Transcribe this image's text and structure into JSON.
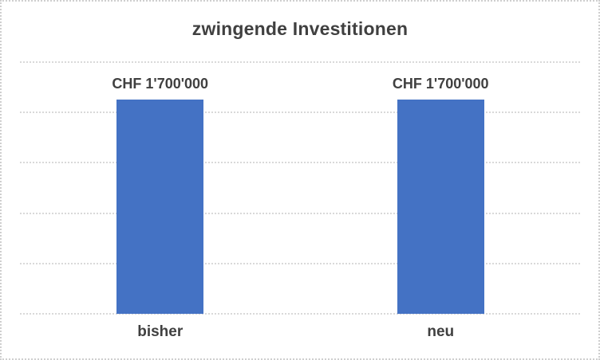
{
  "chart_data": {
    "type": "bar",
    "title": "zwingende Investitionen",
    "categories": [
      "bisher",
      "neu"
    ],
    "values": [
      1700000,
      1700000
    ],
    "data_labels": [
      "CHF 1'700'000",
      "CHF 1'700'000"
    ],
    "xlabel": "",
    "ylabel": "",
    "ylim": [
      0,
      2000000
    ],
    "gridline_step": 400000,
    "grid": true,
    "legend": false,
    "bar_color": "#4472C4",
    "text_color": "#404040",
    "gridline_color": "#D9D9D9",
    "border_color": "#CFCFCF",
    "background": "#FFFFFF"
  }
}
